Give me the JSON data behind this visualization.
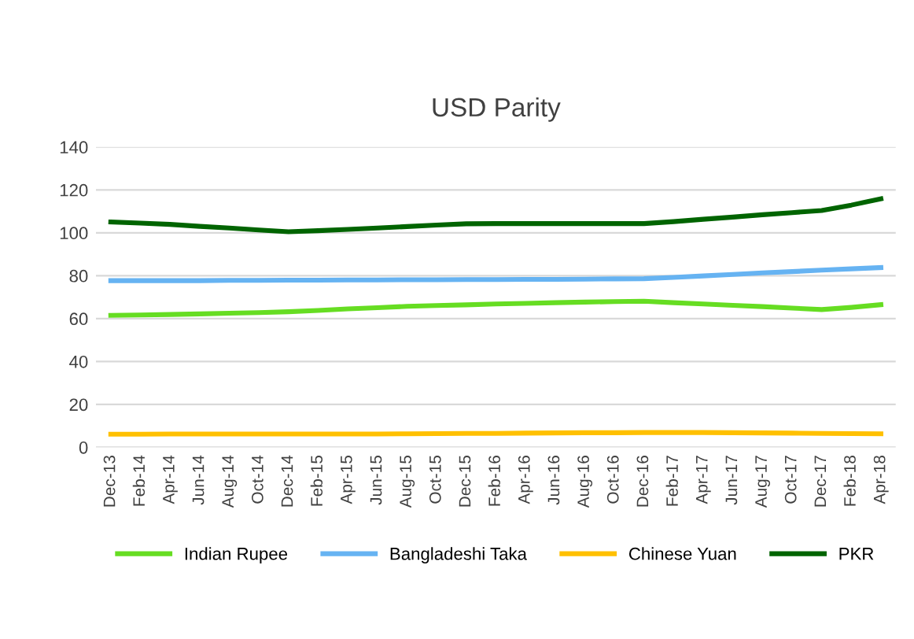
{
  "chart_data": {
    "type": "line",
    "title": "USD Parity",
    "categories": [
      "Dec-13",
      "Feb-14",
      "Apr-14",
      "Jun-14",
      "Aug-14",
      "Oct-14",
      "Dec-14",
      "Feb-15",
      "Apr-15",
      "Jun-15",
      "Aug-15",
      "Oct-15",
      "Dec-15",
      "Feb-16",
      "Apr-16",
      "Jun-16",
      "Aug-16",
      "Oct-16",
      "Dec-16",
      "Feb-17",
      "Apr-17",
      "Jun-17",
      "Aug-17",
      "Oct-17",
      "Dec-17",
      "Feb-18",
      "Apr-18"
    ],
    "series": [
      {
        "name": "Indian Rupee",
        "color": "#66dd22",
        "values": [
          61.5,
          61.7,
          61.9,
          62.2,
          62.5,
          62.8,
          63.2,
          63.8,
          64.5,
          65.1,
          65.7,
          66.1,
          66.4,
          66.8,
          67.1,
          67.4,
          67.7,
          67.9,
          68.1,
          67.4,
          66.8,
          66.2,
          65.6,
          64.9,
          64.2,
          65.2,
          66.5
        ]
      },
      {
        "name": "Bangladeshi Taka",
        "color": "#66b3f2",
        "values": [
          77.7,
          77.7,
          77.7,
          77.7,
          77.8,
          77.8,
          77.9,
          77.9,
          78.0,
          78.0,
          78.1,
          78.1,
          78.2,
          78.2,
          78.3,
          78.3,
          78.4,
          78.5,
          78.6,
          79.2,
          79.9,
          80.6,
          81.3,
          81.9,
          82.6,
          83.2,
          83.8
        ]
      },
      {
        "name": "Chinese Yuan",
        "color": "#ffc000",
        "values": [
          6.1,
          6.1,
          6.2,
          6.2,
          6.2,
          6.2,
          6.2,
          6.2,
          6.2,
          6.2,
          6.3,
          6.4,
          6.5,
          6.5,
          6.6,
          6.7,
          6.8,
          6.8,
          6.9,
          6.9,
          6.9,
          6.8,
          6.7,
          6.6,
          6.5,
          6.4,
          6.3
        ]
      },
      {
        "name": "PKR",
        "color": "#006400",
        "values": [
          105.0,
          104.5,
          103.9,
          103.0,
          102.2,
          101.3,
          100.5,
          101.0,
          101.6,
          102.2,
          102.9,
          103.6,
          104.2,
          104.3,
          104.3,
          104.3,
          104.3,
          104.3,
          104.3,
          105.2,
          106.3,
          107.3,
          108.4,
          109.4,
          110.4,
          112.9,
          115.8
        ]
      }
    ],
    "ylim": [
      0,
      140
    ],
    "yticks": [
      0,
      20,
      40,
      60,
      80,
      100,
      120,
      140
    ],
    "grid": "y",
    "legend": "bottom",
    "marker": "none",
    "line_style": "solid"
  }
}
